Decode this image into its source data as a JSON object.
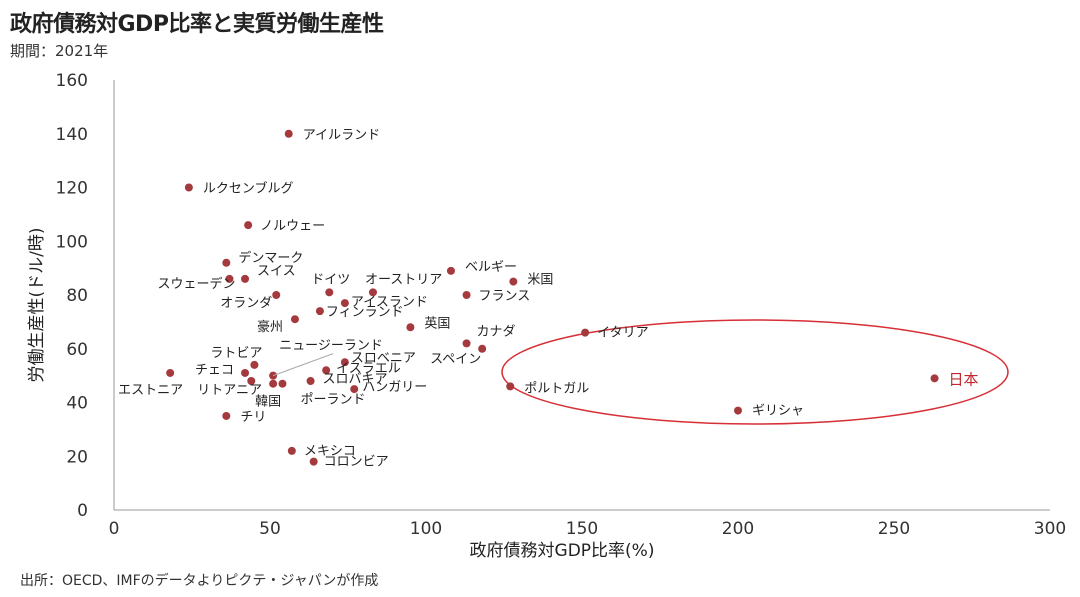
{
  "title": "政府債務対GDP比率と実質労働生産性",
  "subtitle": "期間：2021年",
  "source": "出所：OECD、IMFのデータよりピクテ・ジャパンが作成",
  "colors": {
    "point": "#a53a3e",
    "highlight": "#d62f35",
    "axis": "#999999"
  },
  "chart_data": {
    "type": "scatter",
    "xlabel": "政府債務対GDP比率(%)",
    "ylabel": "労働生産性(ドル/時)",
    "xlim": [
      0,
      300
    ],
    "ylim": [
      0,
      160
    ],
    "xticks": [
      0,
      50,
      100,
      150,
      200,
      250,
      300
    ],
    "yticks": [
      0,
      20,
      40,
      60,
      80,
      100,
      120,
      140,
      160
    ],
    "grid": false,
    "points": [
      {
        "label": "アイルランド",
        "x": 56,
        "y": 140
      },
      {
        "label": "ルクセンブルグ",
        "x": 24,
        "y": 120
      },
      {
        "label": "ノルウェー",
        "x": 43,
        "y": 106
      },
      {
        "label": "デンマーク",
        "x": 36,
        "y": 92
      },
      {
        "label": "スウェーデン",
        "x": 37,
        "y": 86
      },
      {
        "label": "スイス",
        "x": 42,
        "y": 86
      },
      {
        "label": "ドイツ",
        "x": 69,
        "y": 81
      },
      {
        "label": "オランダ",
        "x": 52,
        "y": 80
      },
      {
        "label": "オーストリア",
        "x": 83,
        "y": 81
      },
      {
        "label": "アイスランド",
        "x": 74,
        "y": 77
      },
      {
        "label": "フィンランド",
        "x": 66,
        "y": 74
      },
      {
        "label": "豪州",
        "x": 58,
        "y": 71
      },
      {
        "label": "英国",
        "x": 95,
        "y": 68
      },
      {
        "label": "ベルギー",
        "x": 108,
        "y": 89
      },
      {
        "label": "米国",
        "x": 128,
        "y": 85
      },
      {
        "label": "フランス",
        "x": 113,
        "y": 80
      },
      {
        "label": "カナダ",
        "x": 113,
        "y": 62
      },
      {
        "label": "スペイン",
        "x": 118,
        "y": 60
      },
      {
        "label": "ニュージーランド",
        "x": 51,
        "y": 50
      },
      {
        "label": "スロベニア",
        "x": 74,
        "y": 55
      },
      {
        "label": "イスラエル",
        "x": 68,
        "y": 52
      },
      {
        "label": "ラトビア",
        "x": 45,
        "y": 54
      },
      {
        "label": "チェコ",
        "x": 42,
        "y": 51
      },
      {
        "label": "エストニア",
        "x": 18,
        "y": 51
      },
      {
        "label": "リトアニア",
        "x": 44,
        "y": 48
      },
      {
        "label": "韓国",
        "x": 51,
        "y": 47
      },
      {
        "label": "スロバキア",
        "x": 63,
        "y": 48
      },
      {
        "label": "ポーランド",
        "x": 54,
        "y": 47
      },
      {
        "label": "ハンガリー",
        "x": 77,
        "y": 45
      },
      {
        "label": "ポルトガル",
        "x": 127,
        "y": 46
      },
      {
        "label": "イタリア",
        "x": 151,
        "y": 66
      },
      {
        "label": "ギリシャ",
        "x": 200,
        "y": 37
      },
      {
        "label": "チリ",
        "x": 36,
        "y": 35
      },
      {
        "label": "メキシコ",
        "x": 57,
        "y": 22
      },
      {
        "label": "コロンビア",
        "x": 64,
        "y": 18
      },
      {
        "label": "日本",
        "x": 263,
        "y": 49,
        "highlight": true
      }
    ]
  }
}
